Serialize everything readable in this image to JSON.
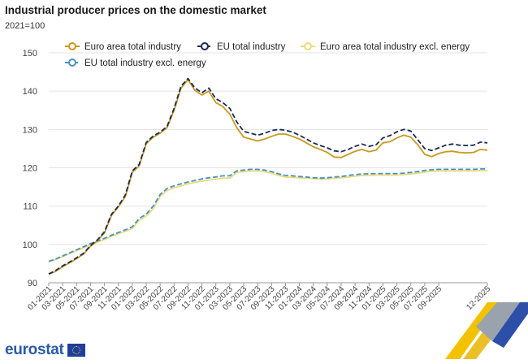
{
  "chart_data": {
    "type": "line",
    "title": "Industrial producer prices on the domestic market",
    "subtitle": "2021=100",
    "ylim": [
      90,
      150
    ],
    "yticks": [
      90,
      100,
      110,
      120,
      130,
      140,
      150
    ],
    "x_tick_labels": [
      "01-2021",
      "03-2021",
      "05-2021",
      "07-2021",
      "09-2021",
      "11-2021",
      "01-2022",
      "03-2022",
      "05-2022",
      "07-2022",
      "09-2022",
      "11-2022",
      "01-2023",
      "03-2023",
      "05-2023",
      "07-2023",
      "09-2023",
      "11-2023",
      "01-2024",
      "03-2024",
      "05-2024",
      "07-2024",
      "09-2024",
      "11-2024",
      "01-2025",
      "03-2025",
      "05-2025",
      "07-2025",
      "09-2025",
      "12-2025"
    ],
    "series": [
      {
        "name": "Euro area total industry",
        "color": "#c79a1e",
        "dash": false,
        "values": [
          92.2,
          93.0,
          94.2,
          95.2,
          96.3,
          97.5,
          99.5,
          101.0,
          103.0,
          107.5,
          109.8,
          112.5,
          118.8,
          120.5,
          126.3,
          128.0,
          129.0,
          130.5,
          135.0,
          140.8,
          143.0,
          140.2,
          139.0,
          140.0,
          137.0,
          136.0,
          134.0,
          130.5,
          128.0,
          127.5,
          127.0,
          127.5,
          128.2,
          128.8,
          128.8,
          128.2,
          127.5,
          126.5,
          125.5,
          124.8,
          124.0,
          122.8,
          122.7,
          123.5,
          124.3,
          124.8,
          124.2,
          124.6,
          126.5,
          126.8,
          127.8,
          128.5,
          128.0,
          126.0,
          123.5,
          122.9,
          123.7,
          124.2,
          124.3,
          124.0,
          123.9,
          124.0,
          124.8,
          124.6
        ]
      },
      {
        "name": "EU total industry",
        "color": "#1a2a5a",
        "dash": true,
        "values": [
          92.3,
          93.2,
          94.4,
          95.4,
          96.5,
          97.7,
          99.7,
          101.2,
          103.3,
          107.8,
          110.0,
          112.9,
          119.2,
          120.9,
          126.6,
          128.3,
          129.3,
          130.8,
          135.5,
          141.3,
          143.3,
          140.8,
          139.6,
          140.8,
          138.0,
          137.0,
          135.5,
          132.0,
          129.5,
          129.0,
          128.5,
          129.0,
          129.7,
          130.0,
          129.8,
          129.3,
          128.5,
          127.5,
          126.5,
          125.8,
          125.2,
          124.4,
          124.2,
          124.8,
          125.6,
          126.2,
          125.6,
          126.0,
          127.8,
          128.4,
          129.4,
          130.0,
          129.6,
          127.3,
          125.0,
          124.5,
          125.2,
          125.9,
          126.2,
          125.9,
          125.8,
          125.9,
          126.7,
          126.5
        ]
      },
      {
        "name": "Euro area total industry excl. energy",
        "color": "#e8dc7a",
        "dash": false,
        "values": [
          95.5,
          96.1,
          96.8,
          97.6,
          98.4,
          99.1,
          99.9,
          100.6,
          101.3,
          102.1,
          102.8,
          103.4,
          104.2,
          106.3,
          107.4,
          109.3,
          112.5,
          114.1,
          114.8,
          115.3,
          115.8,
          116.2,
          116.5,
          116.8,
          117.0,
          117.3,
          117.3,
          118.8,
          119.0,
          119.2,
          119.2,
          119.0,
          118.6,
          118.0,
          117.6,
          117.5,
          117.4,
          117.3,
          117.2,
          117.0,
          117.1,
          117.3,
          117.4,
          117.6,
          117.8,
          118.0,
          118.0,
          118.1,
          118.1,
          118.1,
          118.1,
          118.2,
          118.4,
          118.6,
          118.9,
          119.1,
          119.2,
          119.2,
          119.2,
          119.2,
          119.2,
          119.2,
          119.3,
          119.3
        ]
      },
      {
        "name": "EU total industry excl. energy",
        "color": "#4a90c8",
        "dash": true,
        "values": [
          95.6,
          96.2,
          97.0,
          97.8,
          98.6,
          99.4,
          100.2,
          100.9,
          101.6,
          102.4,
          103.1,
          103.8,
          104.6,
          106.8,
          107.9,
          110.0,
          113.0,
          114.6,
          115.3,
          115.8,
          116.3,
          116.7,
          117.1,
          117.4,
          117.6,
          117.9,
          117.9,
          119.2,
          119.4,
          119.6,
          119.6,
          119.4,
          119.0,
          118.4,
          118.0,
          117.9,
          117.7,
          117.6,
          117.4,
          117.3,
          117.4,
          117.6,
          117.7,
          118.0,
          118.2,
          118.4,
          118.4,
          118.5,
          118.5,
          118.5,
          118.5,
          118.6,
          118.8,
          119.0,
          119.3,
          119.5,
          119.6,
          119.6,
          119.6,
          119.6,
          119.6,
          119.6,
          119.7,
          119.7
        ]
      }
    ]
  },
  "brand": {
    "name": "eurostat"
  }
}
